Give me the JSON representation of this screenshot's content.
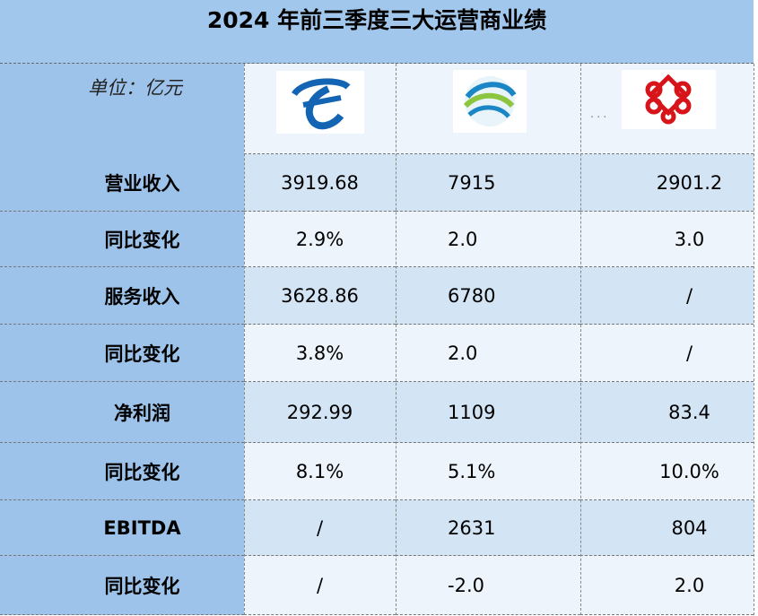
{
  "header": {
    "title": "2024 年前三季度三大运营商业绩",
    "unit": "单位：亿元",
    "ellipsis": "..."
  },
  "table": {
    "rows": [
      [
        "营业收入",
        "3919.68",
        "7915",
        "2901.2"
      ],
      [
        "同比变化",
        "2.9%",
        "2.0",
        "3.0"
      ],
      [
        "服务收入",
        "3628.86",
        "6780",
        "/"
      ],
      [
        "同比变化",
        "3.8%",
        "2.0",
        "/"
      ],
      [
        "净利润",
        "292.99",
        "1109",
        "83.4"
      ],
      [
        "同比变化",
        "8.1%",
        "5.1%",
        "10.0%"
      ],
      [
        "EBITDA",
        "/",
        "2631",
        "804"
      ],
      [
        "同比变化",
        "/",
        "-2.0",
        "2.0"
      ]
    ]
  }
}
